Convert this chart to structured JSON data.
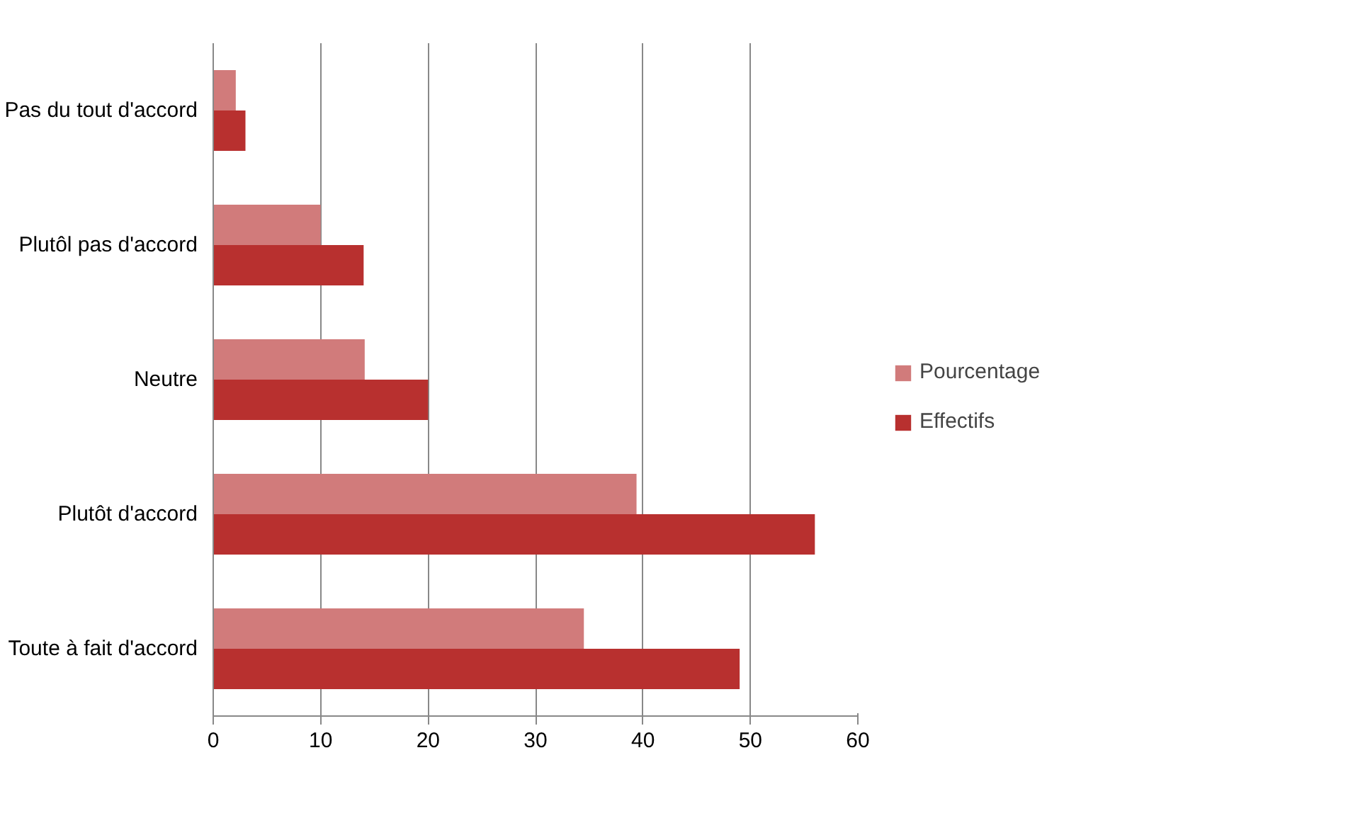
{
  "chart_data": {
    "type": "bar",
    "orientation": "horizontal",
    "categories": [
      "Pas du tout d'accord",
      "Plutôl pas d'accord",
      "Neutre",
      "Plutôt d'accord",
      "Toute à fait d'accord"
    ],
    "series": [
      {
        "name": "Pourcentage",
        "color": "#d17b7b",
        "values": [
          2.1,
          10,
          14.1,
          39.4,
          34.5
        ]
      },
      {
        "name": "Effectifs",
        "color": "#b8302f",
        "values": [
          3,
          14,
          20,
          56,
          49
        ]
      }
    ],
    "xlim": [
      0,
      60
    ],
    "xticks": [
      0,
      10,
      20,
      30,
      40,
      50,
      60
    ],
    "grid": "x",
    "legend": "right"
  }
}
